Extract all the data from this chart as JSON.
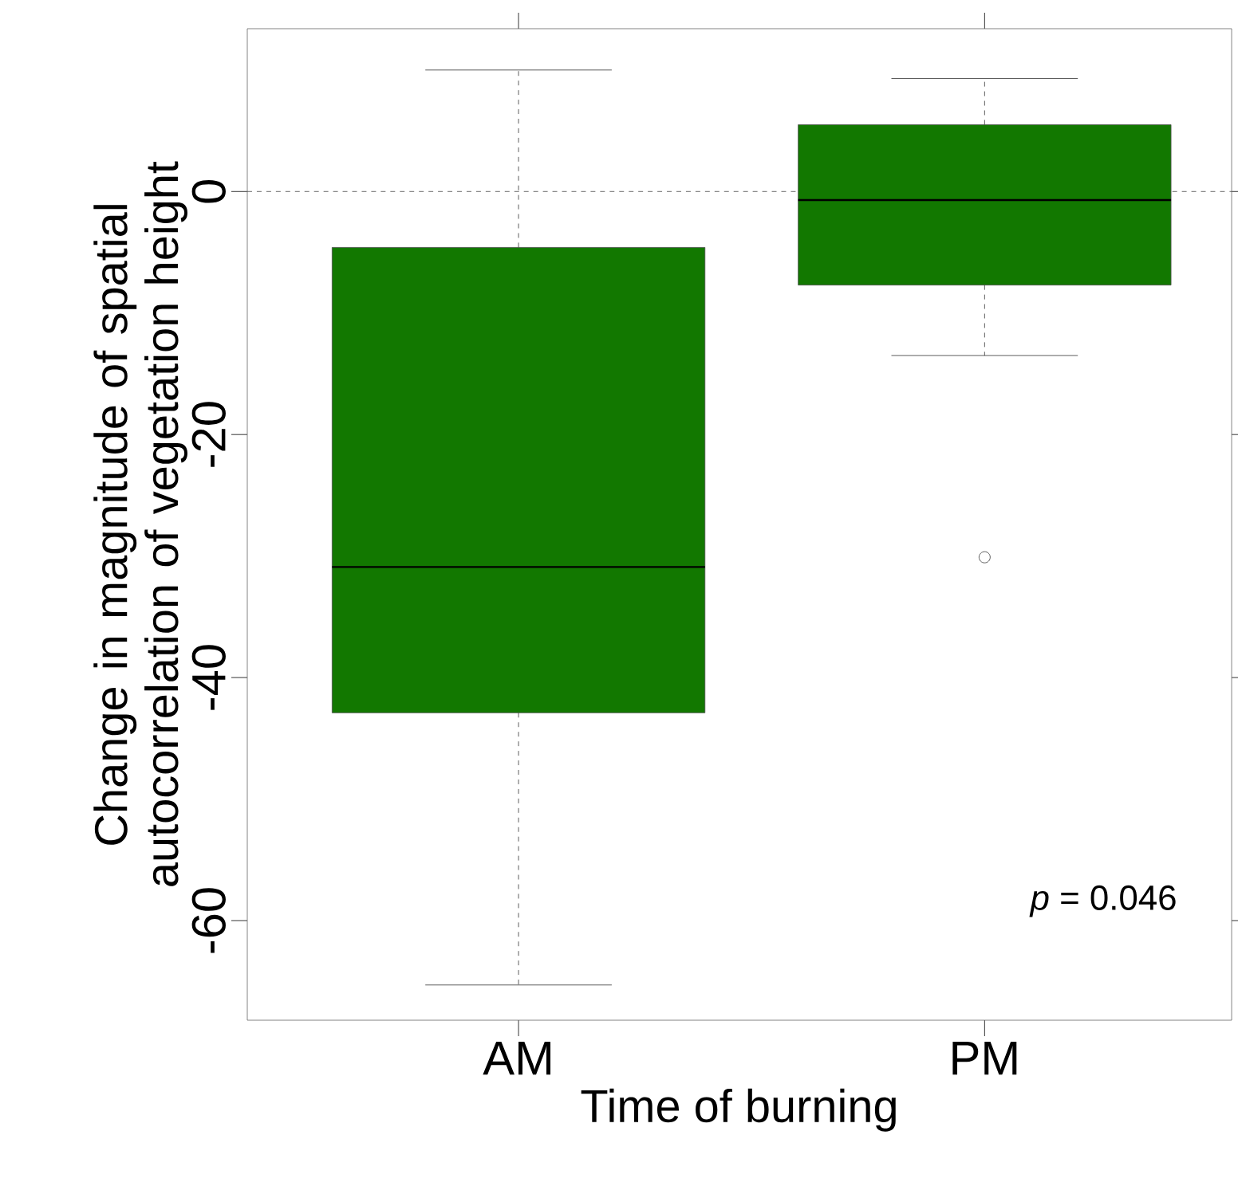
{
  "chart_data": {
    "type": "box",
    "xlabel": "Time of burning",
    "ylabel": "Change in magnitude of spatial autocorrelation of vegetation height",
    "categories": [
      "AM",
      "PM"
    ],
    "color": "#127800",
    "boxes": [
      {
        "low": -65.3,
        "q1": -42.9,
        "median": -30.9,
        "q3": -4.6,
        "high": 10
      },
      {
        "low": -13.5,
        "q1": -7.7,
        "median": -0.7,
        "q3": 5.5,
        "high": 9.3,
        "outliers": [
          -30.1
        ]
      }
    ],
    "ylim": [
      -68.2,
      13.4
    ],
    "yticks": [
      -60,
      -40,
      -20,
      0
    ],
    "ref_lines": [
      {
        "axis": "y",
        "value": 0,
        "line_style": "dashed",
        "color": "#404040"
      }
    ],
    "annotations": [
      "*p* = 0.046"
    ]
  }
}
